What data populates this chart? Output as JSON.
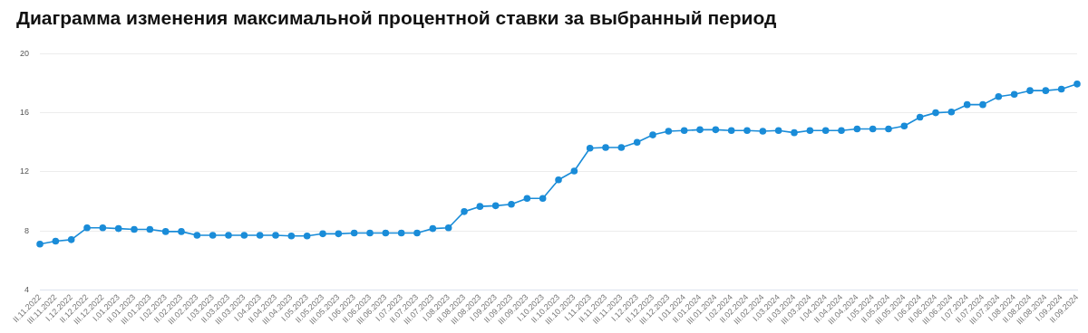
{
  "chart_data": {
    "type": "line",
    "title": "Диаграмма изменения максимальной процентной ставки за выбранный период",
    "categories": [
      "II.11.2022",
      "III.11.2022",
      "I.12.2022",
      "II.12.2022",
      "III.12.2022",
      "I.01.2023",
      "II.01.2023",
      "III.01.2023",
      "I.02.2023",
      "II.02.2023",
      "III.02.2023",
      "I.03.2023",
      "II.03.2023",
      "III.03.2023",
      "I.04.2023",
      "II.04.2023",
      "III.04.2023",
      "I.05.2023",
      "II.05.2023",
      "III.05.2023",
      "I.06.2023",
      "II.06.2023",
      "III.06.2023",
      "I.07.2023",
      "II.07.2023",
      "III.07.2023",
      "I.08.2023",
      "II.08.2023",
      "III.08.2023",
      "I.09.2023",
      "II.09.2023",
      "III.09.2023",
      "I.10.2023",
      "II.10.2023",
      "III.10.2023",
      "I.11.2023",
      "II.11.2023",
      "III.11.2023",
      "I.12.2023",
      "II.12.2023",
      "III.12.2023",
      "I.01.2024",
      "II.01.2024",
      "III.01.2024",
      "I.02.2024",
      "II.02.2024",
      "III.02.2024",
      "I.03.2024",
      "II.03.2024",
      "III.03.2024",
      "I.04.2024",
      "II.04.2024",
      "III.04.2024",
      "I.05.2024",
      "II.05.2024",
      "III.05.2024",
      "I.06.2024",
      "II.06.2024",
      "III.06.2024",
      "I.07.2024",
      "II.07.2024",
      "III.07.2024",
      "I.08.2024",
      "II.08.2024",
      "III.08.2024",
      "I.09.2024",
      "II.09.2024"
    ],
    "series": [
      {
        "color": "#1a8cd8",
        "values": [
          7.1,
          7.3,
          7.4,
          8.2,
          8.2,
          8.15,
          8.1,
          8.1,
          7.95,
          7.95,
          7.7,
          7.7,
          7.7,
          7.7,
          7.7,
          7.7,
          7.65,
          7.65,
          7.8,
          7.8,
          7.85,
          7.85,
          7.85,
          7.85,
          7.85,
          8.15,
          8.2,
          9.3,
          9.65,
          9.7,
          9.8,
          10.2,
          10.2,
          11.45,
          12.05,
          13.6,
          13.65,
          13.65,
          14.0,
          14.5,
          14.75,
          14.8,
          14.85,
          14.85,
          14.8,
          14.8,
          14.75,
          14.8,
          14.65,
          14.8,
          14.8,
          14.8,
          14.9,
          14.9,
          14.9,
          15.1,
          15.7,
          16.0,
          16.05,
          16.55,
          16.55,
          17.1,
          17.25,
          17.5,
          17.5,
          17.6,
          17.95
        ]
      }
    ],
    "ylim": [
      4,
      20
    ],
    "yticks": [
      4,
      8,
      12,
      16,
      20
    ],
    "grid": "y",
    "legend": false,
    "marker": "circle",
    "line_style": "solid"
  }
}
